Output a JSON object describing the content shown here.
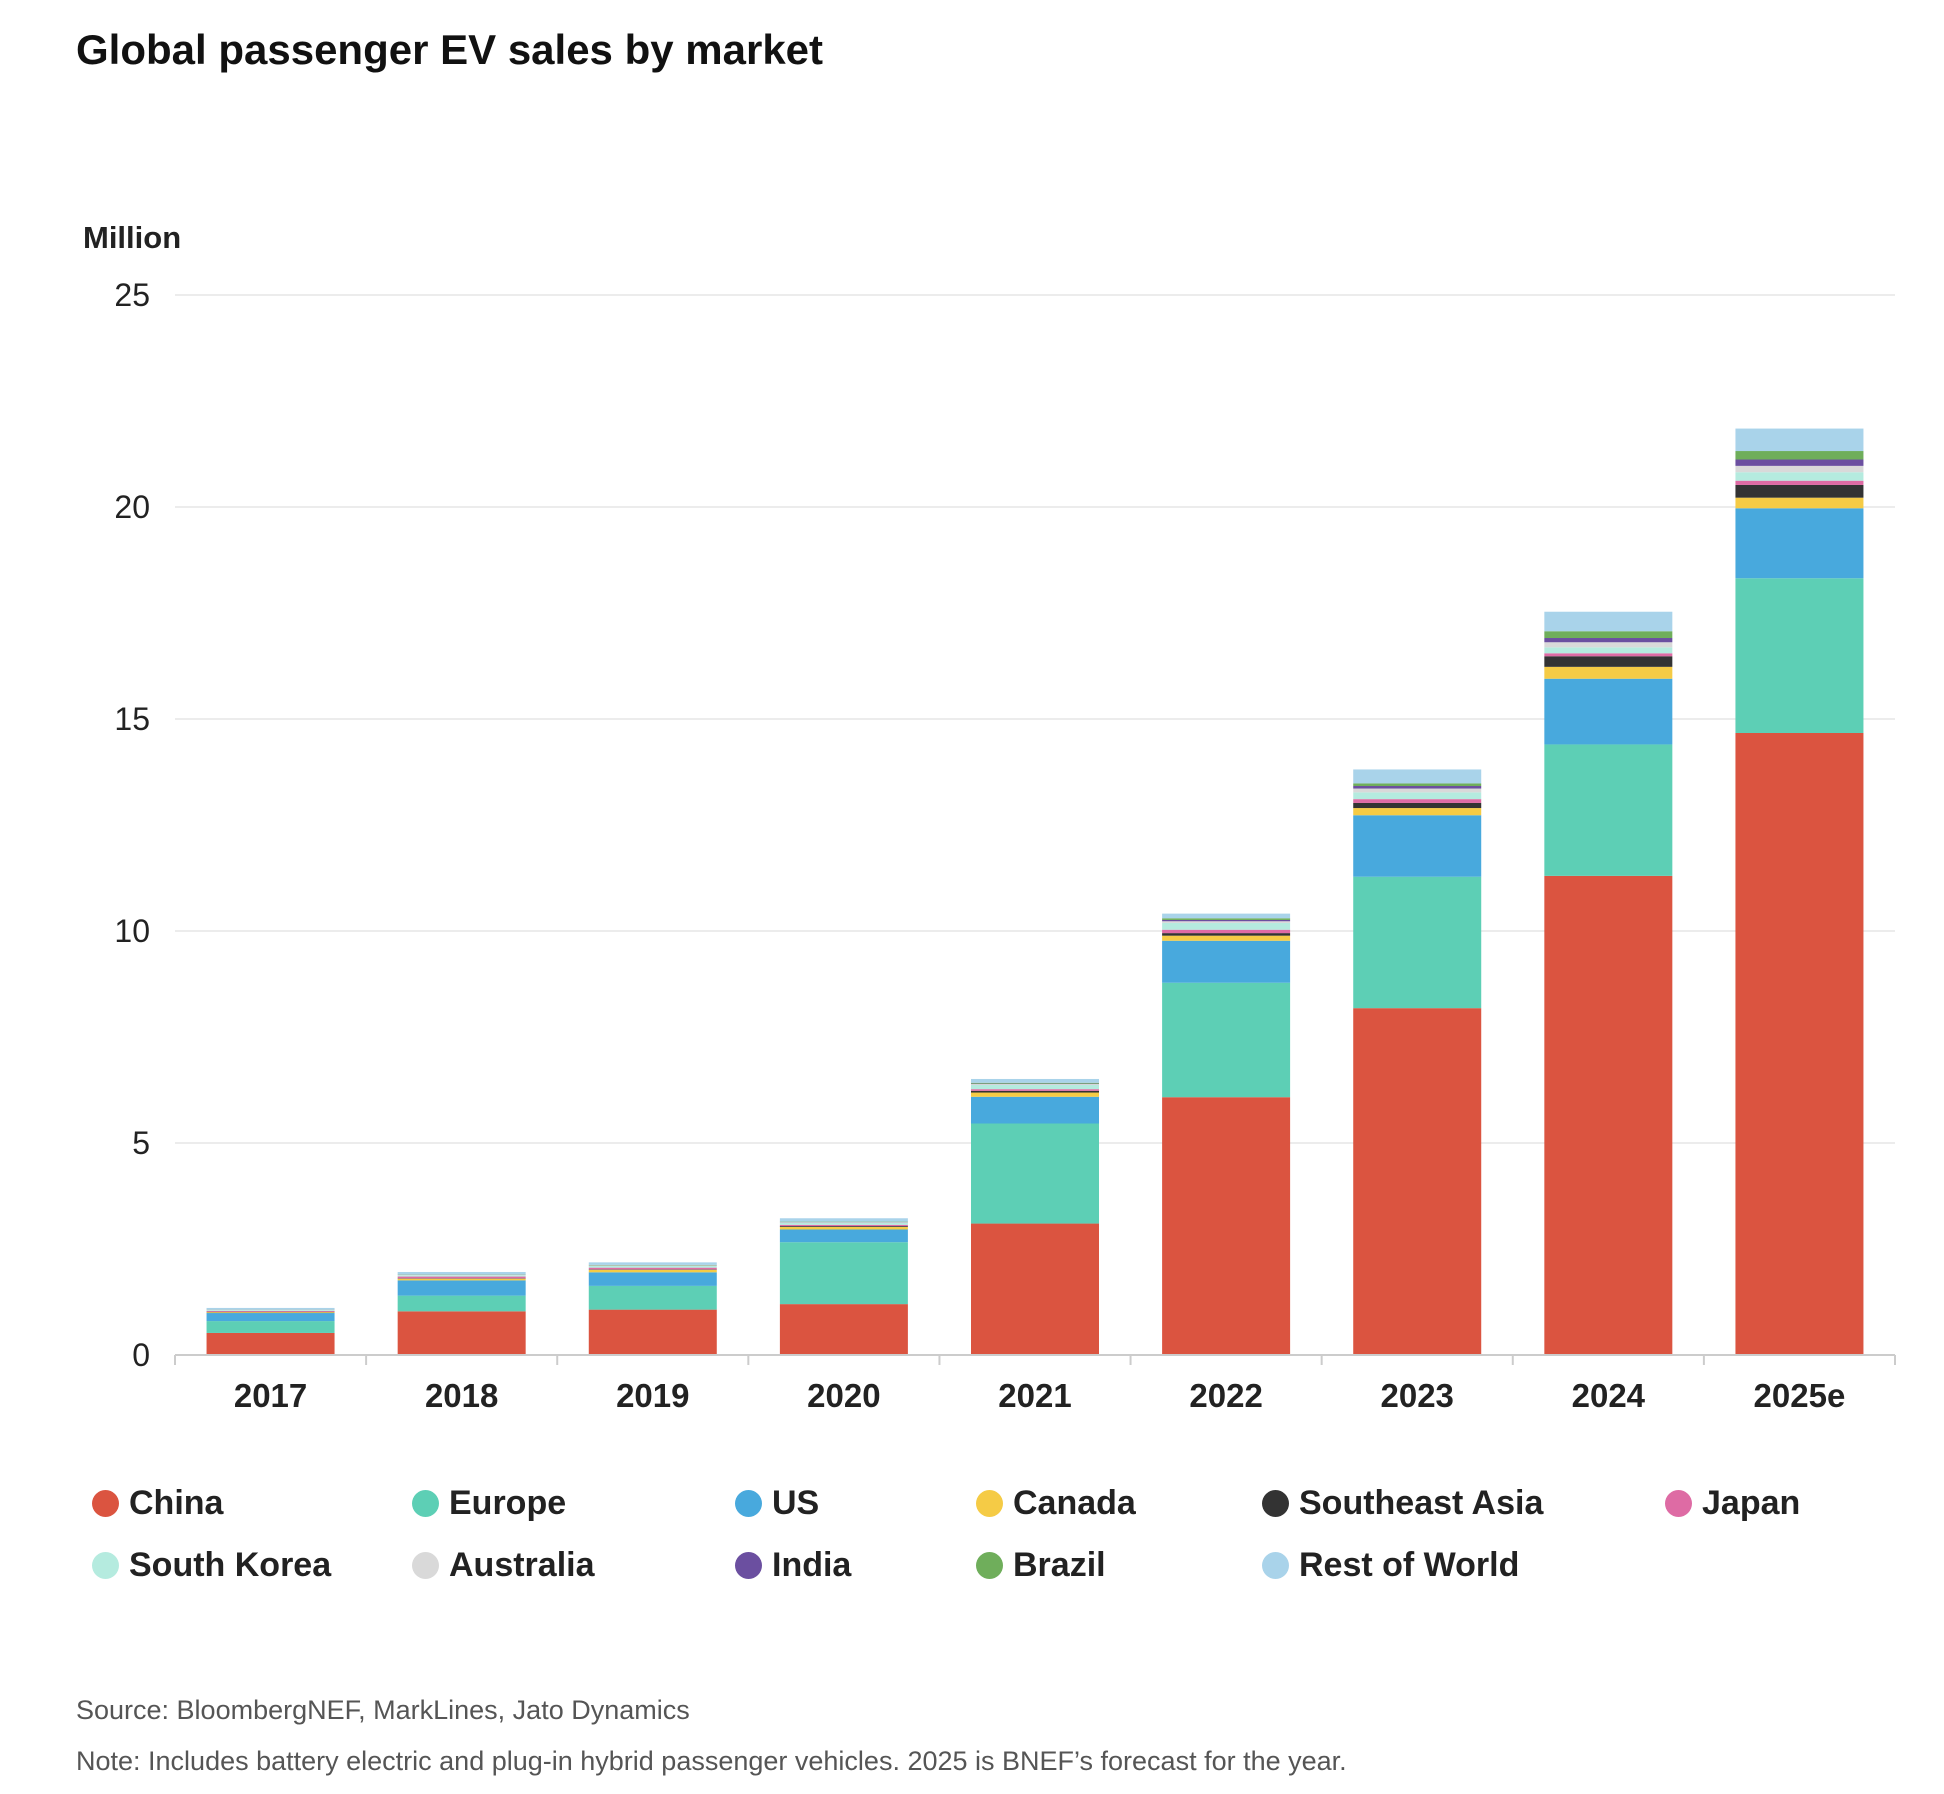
{
  "title": "Global passenger EV sales by market",
  "unit_label": "Million",
  "chart_data": {
    "type": "bar",
    "stacked": true,
    "title": "Global passenger EV sales by market",
    "ylabel": "Million",
    "ylim": [
      0,
      25
    ],
    "yticks": [
      0,
      5,
      10,
      15,
      20,
      25
    ],
    "grid": true,
    "legend_position": "bottom",
    "categories": [
      "2017",
      "2018",
      "2019",
      "2020",
      "2021",
      "2022",
      "2023",
      "2024",
      "2025e"
    ],
    "series": [
      {
        "name": "China",
        "color": "#DB5440",
        "values": [
          0.52,
          1.03,
          1.07,
          1.2,
          3.1,
          6.08,
          8.18,
          11.3,
          14.67
        ]
      },
      {
        "name": "Europe",
        "color": "#5DCFB5",
        "values": [
          0.28,
          0.37,
          0.56,
          1.46,
          2.36,
          2.7,
          3.1,
          3.1,
          3.65
        ]
      },
      {
        "name": "US",
        "color": "#48A9DD",
        "values": [
          0.19,
          0.36,
          0.32,
          0.3,
          0.63,
          0.99,
          1.45,
          1.55,
          1.65
        ]
      },
      {
        "name": "Canada",
        "color": "#F5CB45",
        "values": [
          0.02,
          0.04,
          0.06,
          0.06,
          0.1,
          0.12,
          0.17,
          0.28,
          0.25
        ]
      },
      {
        "name": "Southeast Asia",
        "color": "#333333",
        "values": [
          0.01,
          0.01,
          0.01,
          0.02,
          0.04,
          0.06,
          0.12,
          0.25,
          0.3
        ]
      },
      {
        "name": "Japan",
        "color": "#DE6BA4",
        "values": [
          0.02,
          0.04,
          0.04,
          0.03,
          0.04,
          0.08,
          0.09,
          0.07,
          0.1
        ]
      },
      {
        "name": "South Korea",
        "color": "#B5EBDF",
        "values": [
          0.02,
          0.03,
          0.04,
          0.05,
          0.1,
          0.16,
          0.16,
          0.14,
          0.2
        ]
      },
      {
        "name": "Australia",
        "color": "#D9D9D9",
        "values": [
          0.005,
          0.01,
          0.01,
          0.01,
          0.02,
          0.04,
          0.09,
          0.12,
          0.15
        ]
      },
      {
        "name": "India",
        "color": "#6B4FA0",
        "values": [
          0.002,
          0.003,
          0.005,
          0.005,
          0.01,
          0.03,
          0.06,
          0.1,
          0.15
        ]
      },
      {
        "name": "Brazil",
        "color": "#6FAE5B",
        "values": [
          0.003,
          0.005,
          0.01,
          0.01,
          0.02,
          0.04,
          0.06,
          0.16,
          0.2
        ]
      },
      {
        "name": "Rest of World",
        "color": "#A9D3EA",
        "values": [
          0.04,
          0.06,
          0.06,
          0.08,
          0.09,
          0.11,
          0.33,
          0.46,
          0.53
        ]
      }
    ]
  },
  "source": "Source: BloombergNEF, MarkLines, Jato Dynamics",
  "note": "Note: Includes battery electric and plug-in hybrid passenger vehicles. 2025 is BNEF’s forecast for the year."
}
